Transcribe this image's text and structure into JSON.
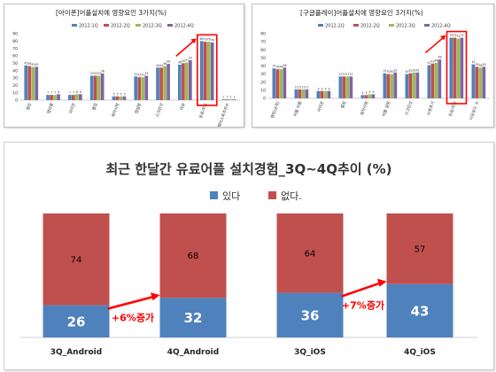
{
  "chart_data": [
    {
      "type": "bar",
      "title": "[아이폰]어플설치에 영향요인 3가지(%)",
      "categories": [
        "랭킹",
        "앱이름",
        "아이콘",
        "별점",
        "제작사명",
        "앱설명",
        "스크린샷",
        "리뷰",
        "유료/무료",
        "페이스북추천수"
      ],
      "series": [
        {
          "name": "2012-1Q",
          "color": "#4f81bd",
          "values": [
            47,
            7,
            7,
            33,
            5,
            32,
            44,
            48,
            80,
            1
          ]
        },
        {
          "name": "2012-2Q",
          "color": "#c0504d",
          "values": [
            46,
            7,
            7,
            33,
            5,
            31,
            44,
            50,
            79,
            1
          ]
        },
        {
          "name": "2012-3Q",
          "color": "#9bbb59",
          "values": [
            45,
            7,
            8,
            33,
            5,
            31,
            46,
            51,
            79,
            1
          ]
        },
        {
          "name": "2012-4Q",
          "color": "#8064a2",
          "values": [
            45,
            8,
            8,
            36,
            5,
            33,
            49,
            54,
            78,
            1
          ]
        }
      ],
      "labels": [
        [
          "47",
          "46",
          "45",
          "45"
        ],
        [
          "7",
          "7",
          "7",
          "8"
        ],
        [
          "7",
          "7",
          "8",
          "8"
        ],
        [
          "33",
          "33",
          "33",
          "36"
        ],
        [
          "5",
          "5",
          "5",
          "5"
        ],
        [
          "32",
          "31",
          "31",
          "33"
        ],
        [
          "44",
          "44",
          "46",
          "49"
        ],
        [
          "48",
          "50",
          "51",
          "54"
        ],
        [
          "80",
          "79",
          "79",
          "78"
        ],
        [
          "1",
          "1",
          "1",
          "1"
        ]
      ],
      "yticks": [
        "0",
        "10",
        "20",
        "30",
        "40",
        "50",
        "60",
        "70",
        "80",
        "90"
      ],
      "ylim": [
        0,
        90
      ],
      "highlight_category": "유료/무료",
      "xlabel": "",
      "ylabel": ""
    },
    {
      "type": "bar",
      "title": "[구글플레이]어플설치에 영향요인 3가지(%)",
      "categories": [
        "랭킹(순위)",
        "어플 이름",
        "아이콘",
        "별점",
        "제작사명",
        "어플 설명",
        "스크린샷",
        "사용후기",
        "유료/무료",
        "다운로드 수"
      ],
      "series": [
        {
          "name": "2012-1Q",
          "color": "#4f81bd",
          "values": [
            37,
            11,
            9,
            27,
            4,
            31,
            30,
            41,
            75,
            42
          ]
        },
        {
          "name": "2012-2Q",
          "color": "#c0504d",
          "values": [
            36,
            11,
            9,
            27,
            4,
            30,
            31,
            43,
            75,
            39
          ]
        },
        {
          "name": "2012-3Q",
          "color": "#9bbb59",
          "values": [
            36,
            11,
            9,
            27,
            5,
            30,
            32,
            44,
            74,
            38
          ]
        },
        {
          "name": "2012-4Q",
          "color": "#8064a2",
          "values": [
            38,
            11,
            9,
            27,
            5,
            32,
            32,
            48,
            75,
            39
          ]
        }
      ],
      "labels": [
        [
          "37",
          "36",
          "36",
          "38"
        ],
        [
          "11",
          "11",
          "11",
          "11"
        ],
        [
          "9",
          "9",
          "9",
          "9"
        ],
        [
          "27",
          "27",
          "27",
          "27"
        ],
        [
          "4",
          "4",
          "5",
          "5"
        ],
        [
          "31",
          "30",
          "30",
          "32"
        ],
        [
          "30",
          "31",
          "32",
          "32"
        ],
        [
          "41",
          "43",
          "44",
          "48"
        ],
        [
          "75",
          "75",
          "74",
          "75"
        ],
        [
          "42",
          "39",
          "38",
          "39"
        ]
      ],
      "yticks": [
        "0",
        "10",
        "20",
        "30",
        "40",
        "50",
        "60",
        "70",
        "80"
      ],
      "ylim": [
        0,
        80
      ],
      "highlight_category": "유료/무료",
      "xlabel": "",
      "ylabel": ""
    },
    {
      "type": "bar",
      "stacked": true,
      "title": "최근 한달간 유료어플 설치경험_3Q~4Q추이 (%)",
      "categories": [
        "3Q_Android",
        "4Q_Android",
        "3Q_iOS",
        "4Q_iOS"
      ],
      "series": [
        {
          "name": "있다",
          "color": "#4f81bd",
          "values": [
            26,
            32,
            36,
            43
          ],
          "labels": [
            "26",
            "32",
            "36",
            "43"
          ]
        },
        {
          "name": "없다.",
          "color": "#c0504d",
          "values": [
            74,
            68,
            64,
            57
          ],
          "labels": [
            "74",
            "68",
            "64",
            "57"
          ]
        }
      ],
      "annotations": [
        {
          "text": "+6%증가",
          "from": "3Q_Android",
          "to": "4Q_Android"
        },
        {
          "text": "+7%증가",
          "from": "3Q_iOS",
          "to": "4Q_iOS"
        }
      ],
      "ylim": [
        0,
        100
      ],
      "legend": "top-center",
      "xlabel": "",
      "ylabel": ""
    }
  ],
  "colors": {
    "highlight": "#ff0000",
    "arrow": "#ff0000"
  }
}
